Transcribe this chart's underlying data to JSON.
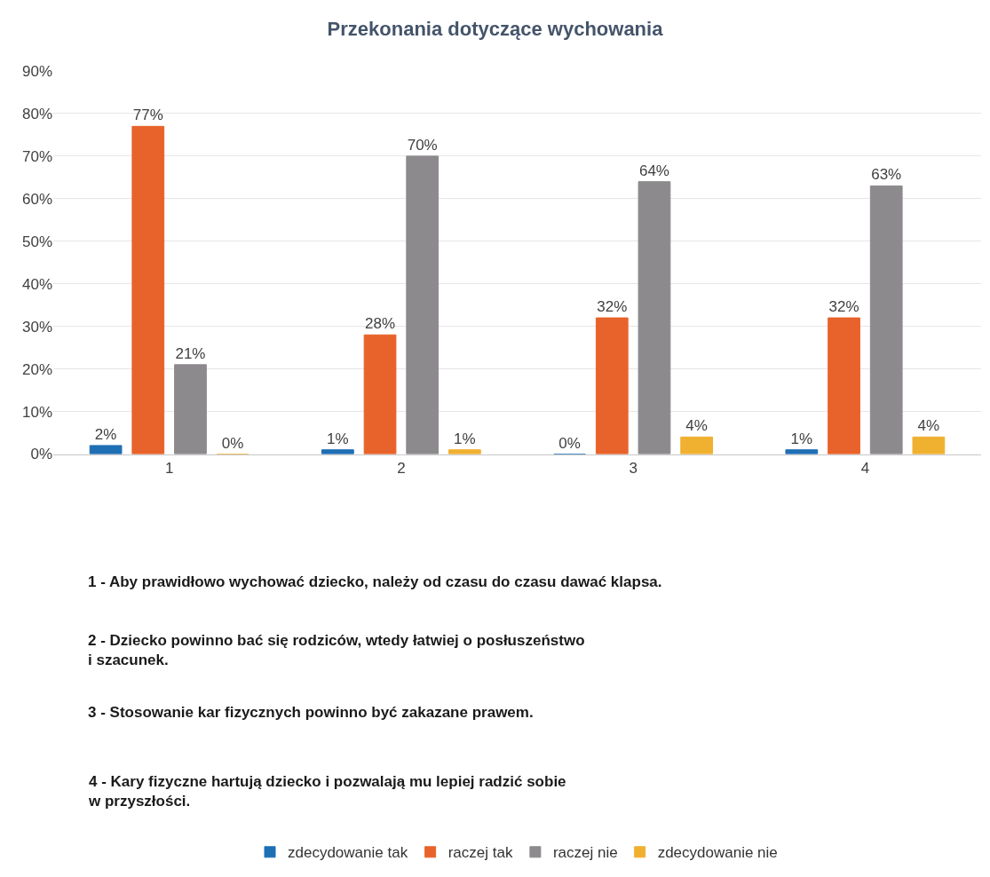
{
  "chart_data": {
    "type": "bar",
    "title": "Przekonania dotyczące wychowania",
    "categories": [
      "1",
      "2",
      "3",
      "4"
    ],
    "series": [
      {
        "name": "zdecydowanie tak",
        "color": "#1f6fb5",
        "values": [
          2,
          1,
          0,
          1
        ],
        "value_labels": [
          "2%",
          "1%",
          "0%",
          "1%"
        ]
      },
      {
        "name": "raczej tak",
        "color": "#e8632b",
        "values": [
          77,
          28,
          32,
          32
        ],
        "value_labels": [
          "77%",
          "28%",
          "32%",
          "32%"
        ]
      },
      {
        "name": "raczej nie",
        "color": "#8c8a8c",
        "values": [
          21,
          70,
          64,
          63
        ],
        "value_labels": [
          "21%",
          "70%",
          "64%",
          "63%"
        ]
      },
      {
        "name": "zdecydowanie nie",
        "color": "#f0b030",
        "values": [
          0,
          1,
          4,
          4
        ],
        "value_labels": [
          "0%",
          "1%",
          "4%",
          "4%"
        ]
      }
    ],
    "ylim": [
      0,
      90
    ],
    "yticks": [
      {
        "value": 0,
        "label": "0%"
      },
      {
        "value": 10,
        "label": "10%"
      },
      {
        "value": 20,
        "label": "20%"
      },
      {
        "value": 30,
        "label": "30%"
      },
      {
        "value": 40,
        "label": "40%"
      },
      {
        "value": 50,
        "label": "50%"
      },
      {
        "value": 60,
        "label": "60%"
      },
      {
        "value": 70,
        "label": "70%"
      },
      {
        "value": 80,
        "label": "80%"
      },
      {
        "value": 90,
        "label": "90%"
      }
    ],
    "grid": "y",
    "legend": "bottom",
    "annotations": [
      "1 - Aby prawidłowo wychować dziecko, należy od czasu do czasu dawać klapsa.",
      "2 - Dziecko powinno bać się rodziców, wtedy łatwiej o posłuszeństwo\ni szacunek.",
      "3 - Stosowanie kar fizycznych powinno być zakazane prawem.",
      "4 - Kary fizyczne hartują dziecko i pozwalają mu lepiej radzić sobie\nw przyszłości."
    ]
  }
}
